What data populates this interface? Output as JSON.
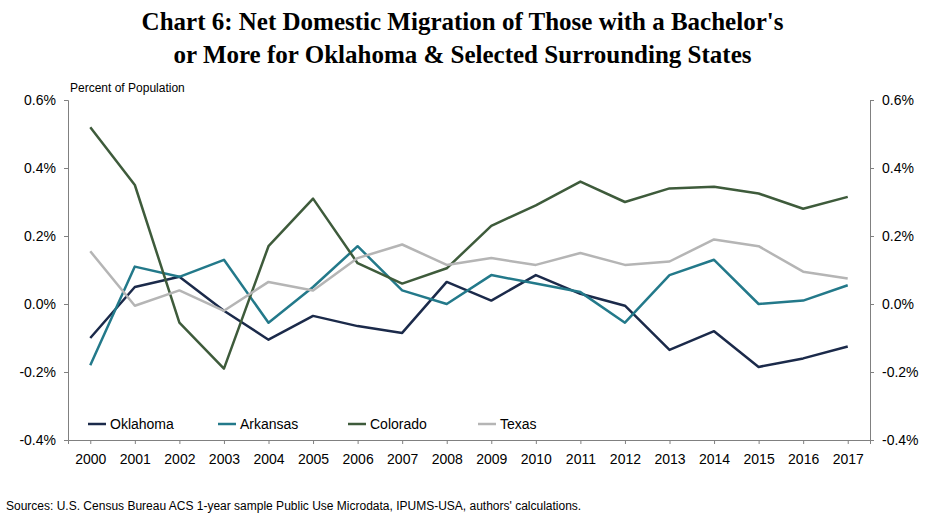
{
  "chart_data": {
    "type": "line",
    "title": [
      "Chart 6: Net Domestic Migration of Those with a Bachelor's",
      "or More for Oklahoma & Selected Surrounding States"
    ],
    "y_label": "Percent of Population",
    "source": "Sources: U.S. Census Bureau ACS 1-year sample Public Use Microdata, IPUMS-USA, authors' calculations.",
    "categories": [
      "2000",
      "2001",
      "2002",
      "2003",
      "2004",
      "2005",
      "2006",
      "2007",
      "2008",
      "2009",
      "2010",
      "2011",
      "2012",
      "2013",
      "2014",
      "2015",
      "2016",
      "2017"
    ],
    "series": [
      {
        "name": "Oklahoma",
        "color": "#1b2a4a",
        "values": [
          -0.1,
          0.05,
          0.08,
          -0.02,
          -0.105,
          -0.035,
          -0.065,
          -0.085,
          0.065,
          0.01,
          0.085,
          0.03,
          -0.005,
          -0.135,
          -0.08,
          -0.185,
          -0.16,
          -0.125
        ]
      },
      {
        "name": "Arkansas",
        "color": "#23798a",
        "values": [
          -0.18,
          0.11,
          0.08,
          0.13,
          -0.055,
          0.05,
          0.17,
          0.04,
          0.0,
          0.085,
          0.06,
          0.035,
          -0.055,
          0.085,
          0.13,
          0.0,
          0.01,
          0.055
        ]
      },
      {
        "name": "Colorado",
        "color": "#3e5b3b",
        "values": [
          0.52,
          0.35,
          -0.055,
          -0.19,
          0.17,
          0.31,
          0.12,
          0.06,
          0.105,
          0.23,
          0.29,
          0.36,
          0.3,
          0.34,
          0.345,
          0.325,
          0.28,
          0.315
        ]
      },
      {
        "name": "Texas",
        "color": "#b5b5b5",
        "values": [
          0.155,
          -0.005,
          0.04,
          -0.02,
          0.065,
          0.04,
          0.135,
          0.175,
          0.115,
          0.135,
          0.115,
          0.15,
          0.115,
          0.125,
          0.19,
          0.17,
          0.095,
          0.075
        ]
      }
    ],
    "ylim": [
      -0.4,
      0.6
    ],
    "yticks": [
      {
        "value": -0.4,
        "label": "-0.4%"
      },
      {
        "value": -0.2,
        "label": "-0.2%"
      },
      {
        "value": 0,
        "label": "0.0%"
      },
      {
        "value": 0.2,
        "label": "0.2%"
      },
      {
        "value": 0.4,
        "label": "0.4%"
      },
      {
        "value": 0.6,
        "label": "0.6%"
      }
    ],
    "y2lim": [
      -0.4,
      0.6
    ],
    "y2ticks": [
      {
        "value": -0.4,
        "label": "-0.4%"
      },
      {
        "value": -0.2,
        "label": "-0.2%"
      },
      {
        "value": 0,
        "label": "0.0%"
      },
      {
        "value": 0.2,
        "label": "0.2%"
      },
      {
        "value": 0.4,
        "label": "0.4%"
      },
      {
        "value": 0.6,
        "label": "0.6%"
      }
    ],
    "legend": "lower left"
  }
}
